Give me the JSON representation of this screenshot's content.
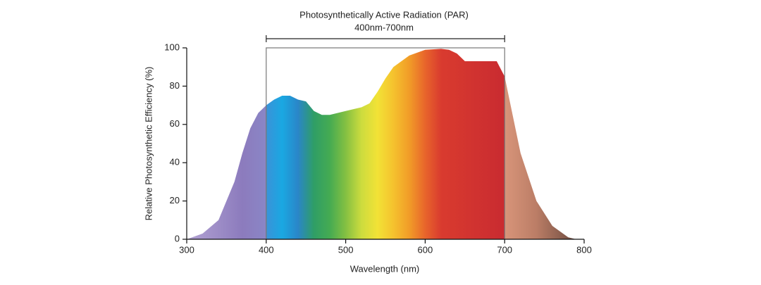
{
  "chart_data": {
    "type": "area",
    "annotation": {
      "title": "Photosynthetically Active Radiation (PAR)",
      "subtitle": "400nm-700nm",
      "range": [
        400,
        700
      ]
    },
    "x_label": "Wavelength (nm)",
    "y_label": "Relative Photosynthetic Efficiency (%)",
    "x": [
      300,
      320,
      340,
      360,
      370,
      380,
      390,
      400,
      410,
      420,
      430,
      440,
      450,
      460,
      470,
      480,
      500,
      520,
      530,
      540,
      550,
      560,
      580,
      600,
      620,
      630,
      640,
      650,
      670,
      690,
      700,
      710,
      720,
      740,
      760,
      780,
      790
    ],
    "values": [
      0,
      3,
      10,
      30,
      45,
      58,
      66,
      70,
      73,
      75,
      75,
      73,
      72,
      67,
      65,
      65,
      67,
      69,
      71,
      77,
      84,
      90,
      96,
      99,
      99.5,
      99,
      97,
      93,
      93,
      93,
      85,
      65,
      45,
      20,
      7,
      1,
      0
    ],
    "fill_stops": [
      {
        "x": 300,
        "color": "#b3a3d3"
      },
      {
        "x": 370,
        "color": "#8c7bbd"
      },
      {
        "x": 399.9,
        "color": "#8a86c6"
      },
      {
        "x": 400,
        "color": "#3a92d8"
      },
      {
        "x": 420,
        "color": "#1aa8e2"
      },
      {
        "x": 440,
        "color": "#2a86c8"
      },
      {
        "x": 460,
        "color": "#2f9e66"
      },
      {
        "x": 480,
        "color": "#45ab52"
      },
      {
        "x": 500,
        "color": "#84c042"
      },
      {
        "x": 520,
        "color": "#cddc3e"
      },
      {
        "x": 540,
        "color": "#f2e236"
      },
      {
        "x": 560,
        "color": "#f5c22e"
      },
      {
        "x": 580,
        "color": "#f19c28"
      },
      {
        "x": 600,
        "color": "#e8652b"
      },
      {
        "x": 620,
        "color": "#d93b2f"
      },
      {
        "x": 699.9,
        "color": "#c92b30"
      },
      {
        "x": 700,
        "color": "#d8957a"
      },
      {
        "x": 740,
        "color": "#bb7d66"
      },
      {
        "x": 790,
        "color": "#6e4c40"
      }
    ],
    "xlim": [
      300,
      800
    ],
    "xticks": [
      300,
      400,
      500,
      600,
      700,
      800
    ],
    "ylim": [
      0,
      100
    ],
    "yticks": [
      0,
      20,
      40,
      60,
      80,
      100
    ]
  }
}
